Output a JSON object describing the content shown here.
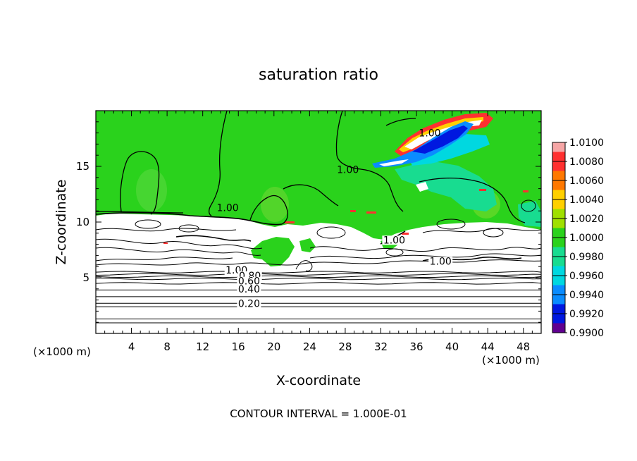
{
  "chart_data": {
    "type": "heatmap",
    "title": "saturation ratio",
    "xlabel": "X-coordinate",
    "ylabel": "Z-coordinate",
    "x_unit": "(×1000 m)",
    "footer": "CONTOUR INTERVAL = 1.000E-01",
    "xlim": [
      0,
      50
    ],
    "ylim": [
      0,
      20
    ],
    "x_ticks": [
      "4",
      "8",
      "12",
      "16",
      "20",
      "24",
      "28",
      "32",
      "36",
      "40",
      "44",
      "48"
    ],
    "y_ticks": [
      "5",
      "10",
      "15"
    ],
    "colorbar": {
      "labels": [
        "1.0100",
        "1.0080",
        "1.0060",
        "1.0040",
        "1.0020",
        "1.0000",
        "0.9980",
        "0.9960",
        "0.9940",
        "0.9920",
        "0.9900"
      ],
      "colors": [
        "#f6a6a6",
        "#ff3030",
        "#ff7800",
        "#ffd000",
        "#a0e000",
        "#2ad21c",
        "#18dc90",
        "#00d8e0",
        "#0a8cff",
        "#0018e0",
        "#600090"
      ]
    },
    "contour_labels": [
      {
        "text": "1.00",
        "x": 37.5,
        "z": 18.0
      },
      {
        "text": "1.00",
        "x": 28.3,
        "z": 14.7
      },
      {
        "text": "1.00",
        "x": 14.8,
        "z": 11.3
      },
      {
        "text": "1.00",
        "x": 33.5,
        "z": 8.4
      },
      {
        "text": "1.00",
        "x": 38.7,
        "z": 6.5
      },
      {
        "text": "1.00",
        "x": 15.8,
        "z": 5.7
      },
      {
        "text": "0.80",
        "x": 17.3,
        "z": 5.2
      },
      {
        "text": "0.60",
        "x": 17.2,
        "z": 4.7
      },
      {
        "text": "0.40",
        "x": 17.2,
        "z": 4.0
      },
      {
        "text": "0.20",
        "x": 17.2,
        "z": 2.7
      }
    ],
    "horizontal_contours_z": [
      0.95,
      1.3,
      2.4,
      2.7,
      3.3,
      3.9,
      4.5,
      4.9,
      5.1,
      5.3,
      5.5
    ],
    "grid": false
  }
}
